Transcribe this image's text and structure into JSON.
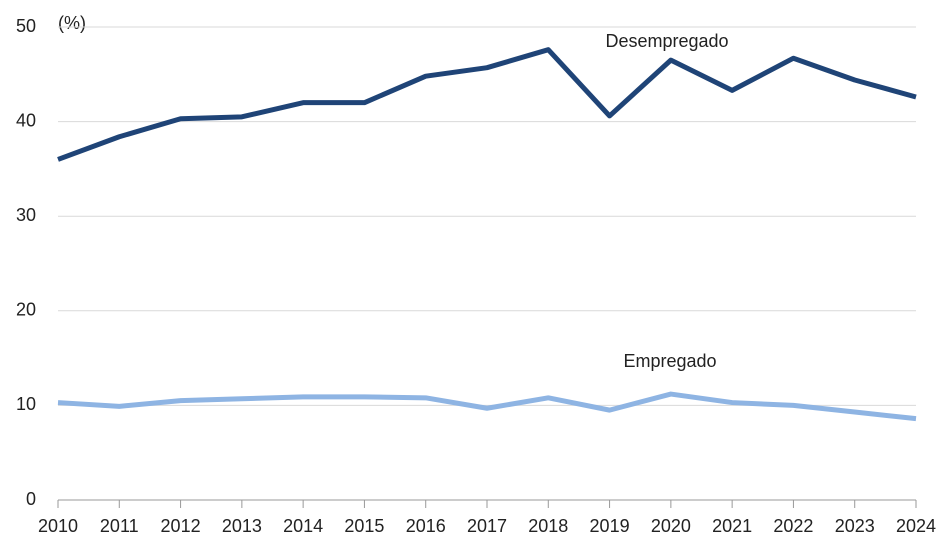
{
  "chart_data": {
    "type": "line",
    "y_unit_label": "(%)",
    "x": [
      2010,
      2011,
      2012,
      2013,
      2014,
      2015,
      2016,
      2017,
      2018,
      2019,
      2020,
      2021,
      2022,
      2023,
      2024
    ],
    "xlim": [
      2010,
      2024
    ],
    "xticks": [
      2010,
      2011,
      2012,
      2013,
      2014,
      2015,
      2016,
      2017,
      2018,
      2019,
      2020,
      2021,
      2022,
      2023,
      2024
    ],
    "ylim": [
      0,
      50
    ],
    "yticks": [
      0,
      10,
      20,
      30,
      40,
      50
    ],
    "grid": true,
    "series": [
      {
        "name": "Desempregado",
        "color": "#1f4477",
        "values": [
          36.0,
          38.4,
          40.3,
          40.5,
          42.0,
          42.0,
          44.8,
          45.7,
          47.6,
          40.6,
          46.5,
          43.3,
          46.7,
          44.4,
          42.6
        ]
      },
      {
        "name": "Empregado",
        "color": "#8eb4e3",
        "values": [
          10.3,
          9.9,
          10.5,
          10.7,
          10.9,
          10.9,
          10.8,
          9.7,
          10.8,
          9.5,
          11.2,
          10.3,
          10.0,
          9.3,
          8.6
        ]
      }
    ]
  }
}
